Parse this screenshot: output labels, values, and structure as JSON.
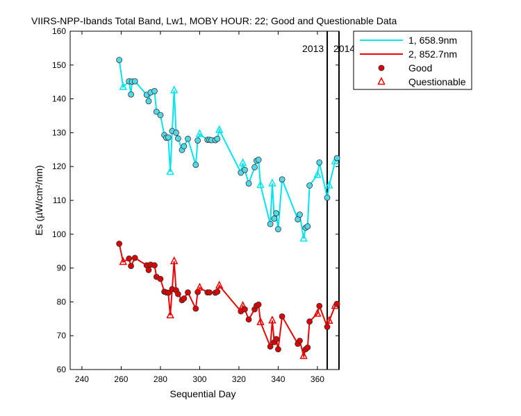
{
  "chart_data": {
    "type": "line",
    "title": "VIIRS-NPP-Ibands Total Band,  Lw1, MOBY HOUR: 22;  Good and Questionable Data",
    "xlabel": "Sequential Day",
    "ylabel": "Es (µW/cm²/nm)",
    "xlim": [
      234,
      371
    ],
    "ylim": [
      60,
      160
    ],
    "xticks": [
      240,
      260,
      280,
      300,
      320,
      340,
      360
    ],
    "yticks": [
      60,
      70,
      80,
      90,
      100,
      110,
      120,
      130,
      140,
      150,
      160
    ],
    "grid": false,
    "legend_position": "outside-top-right",
    "year_markers": [
      {
        "x": 365,
        "left_label": "2013",
        "right_label": "2014"
      },
      {
        "x": 371,
        "left_label": "",
        "right_label": ""
      }
    ],
    "series": [
      {
        "name": "1, 658.9nm",
        "color": "#00e5ee",
        "marker_fill": "#52d8e8",
        "points": [
          {
            "x": 259,
            "y": 151.5,
            "q": false
          },
          {
            "x": 261,
            "y": 143.5,
            "q": true
          },
          {
            "x": 264,
            "y": 145.2,
            "q": false
          },
          {
            "x": 265,
            "y": 141.3,
            "q": false
          },
          {
            "x": 265.5,
            "y": 145.1,
            "q": false
          },
          {
            "x": 267,
            "y": 145.2,
            "q": false
          },
          {
            "x": 273,
            "y": 141.2,
            "q": false
          },
          {
            "x": 274,
            "y": 139.3,
            "q": false
          },
          {
            "x": 275,
            "y": 141.9,
            "q": false
          },
          {
            "x": 277,
            "y": 142.3,
            "q": false
          },
          {
            "x": 278,
            "y": 136.2,
            "q": false
          },
          {
            "x": 280,
            "y": 135.2,
            "q": false
          },
          {
            "x": 282,
            "y": 129.3,
            "q": false
          },
          {
            "x": 283,
            "y": 128.5,
            "q": false
          },
          {
            "x": 284,
            "y": 128.6,
            "q": false
          },
          {
            "x": 285,
            "y": 118.4,
            "q": true
          },
          {
            "x": 286,
            "y": 130.5,
            "q": false
          },
          {
            "x": 287,
            "y": 142.5,
            "q": true
          },
          {
            "x": 288,
            "y": 130.0,
            "q": false
          },
          {
            "x": 289,
            "y": 128.3,
            "q": false
          },
          {
            "x": 291,
            "y": 124.9,
            "q": false
          },
          {
            "x": 292,
            "y": 126.0,
            "q": false
          },
          {
            "x": 294,
            "y": 128.2,
            "q": false
          },
          {
            "x": 298,
            "y": 120.5,
            "q": false
          },
          {
            "x": 299,
            "y": 127.7,
            "q": false
          },
          {
            "x": 300,
            "y": 129.6,
            "q": true
          },
          {
            "x": 304,
            "y": 127.9,
            "q": false
          },
          {
            "x": 305,
            "y": 127.9,
            "q": false
          },
          {
            "x": 306,
            "y": 127.8,
            "q": false
          },
          {
            "x": 308,
            "y": 127.8,
            "q": false
          },
          {
            "x": 309,
            "y": 128.2,
            "q": false
          },
          {
            "x": 310,
            "y": 130.8,
            "q": true
          },
          {
            "x": 321,
            "y": 118.2,
            "q": false
          },
          {
            "x": 322,
            "y": 121.0,
            "q": true
          },
          {
            "x": 323,
            "y": 119.0,
            "q": false
          },
          {
            "x": 325,
            "y": 115.0,
            "q": false
          },
          {
            "x": 328,
            "y": 119.8,
            "q": false
          },
          {
            "x": 329,
            "y": 121.7,
            "q": false
          },
          {
            "x": 330,
            "y": 122.0,
            "q": false
          },
          {
            "x": 331,
            "y": 114.5,
            "q": true
          },
          {
            "x": 336,
            "y": 103.0,
            "q": false
          },
          {
            "x": 337,
            "y": 115.0,
            "q": true
          },
          {
            "x": 338,
            "y": 104.6,
            "q": false
          },
          {
            "x": 339,
            "y": 106.2,
            "q": false
          },
          {
            "x": 340,
            "y": 101.5,
            "q": false
          },
          {
            "x": 342,
            "y": 116.2,
            "q": false
          },
          {
            "x": 350,
            "y": 104.4,
            "q": false
          },
          {
            "x": 351,
            "y": 105.8,
            "q": false
          },
          {
            "x": 353,
            "y": 98.7,
            "q": true
          },
          {
            "x": 354,
            "y": 101.9,
            "q": false
          },
          {
            "x": 355,
            "y": 102.3,
            "q": false
          },
          {
            "x": 356,
            "y": 114.4,
            "q": false
          },
          {
            "x": 360,
            "y": 117.5,
            "q": true
          },
          {
            "x": 361,
            "y": 121.2,
            "q": false
          },
          {
            "x": 365,
            "y": 110.8,
            "q": false
          },
          {
            "x": 366,
            "y": 114.4,
            "q": true
          },
          {
            "x": 369,
            "y": 121.5,
            "q": true
          },
          {
            "x": 370,
            "y": 122.5,
            "q": false
          }
        ]
      },
      {
        "name": "2, 852.7nm",
        "color": "#ee0000",
        "marker_fill": "#dd0000",
        "points": [
          {
            "x": 259,
            "y": 97.2,
            "q": false
          },
          {
            "x": 261,
            "y": 91.8,
            "q": true
          },
          {
            "x": 264,
            "y": 92.8,
            "q": false
          },
          {
            "x": 265,
            "y": 90.6,
            "q": false
          },
          {
            "x": 267,
            "y": 93.0,
            "q": false
          },
          {
            "x": 273,
            "y": 90.8,
            "q": false
          },
          {
            "x": 274,
            "y": 89.4,
            "q": false
          },
          {
            "x": 275,
            "y": 91.0,
            "q": false
          },
          {
            "x": 277,
            "y": 90.8,
            "q": false
          },
          {
            "x": 278,
            "y": 87.4,
            "q": false
          },
          {
            "x": 280,
            "y": 86.8,
            "q": false
          },
          {
            "x": 282,
            "y": 83.0,
            "q": false
          },
          {
            "x": 283,
            "y": 82.8,
            "q": false
          },
          {
            "x": 284,
            "y": 82.7,
            "q": false
          },
          {
            "x": 285,
            "y": 76.0,
            "q": true
          },
          {
            "x": 286,
            "y": 83.8,
            "q": false
          },
          {
            "x": 287,
            "y": 92.0,
            "q": true
          },
          {
            "x": 288,
            "y": 83.4,
            "q": false
          },
          {
            "x": 289,
            "y": 82.3,
            "q": false
          },
          {
            "x": 291,
            "y": 80.5,
            "q": false
          },
          {
            "x": 292,
            "y": 81.0,
            "q": false
          },
          {
            "x": 294,
            "y": 82.8,
            "q": false
          },
          {
            "x": 298,
            "y": 78.0,
            "q": false
          },
          {
            "x": 299,
            "y": 82.9,
            "q": false
          },
          {
            "x": 300,
            "y": 84.2,
            "q": true
          },
          {
            "x": 304,
            "y": 82.8,
            "q": false
          },
          {
            "x": 305,
            "y": 82.8,
            "q": false
          },
          {
            "x": 308,
            "y": 82.7,
            "q": false
          },
          {
            "x": 309,
            "y": 83.0,
            "q": false
          },
          {
            "x": 310,
            "y": 84.8,
            "q": true
          },
          {
            "x": 321,
            "y": 77.2,
            "q": false
          },
          {
            "x": 322,
            "y": 78.8,
            "q": true
          },
          {
            "x": 323,
            "y": 77.8,
            "q": false
          },
          {
            "x": 325,
            "y": 74.8,
            "q": false
          },
          {
            "x": 328,
            "y": 77.8,
            "q": false
          },
          {
            "x": 329,
            "y": 78.9,
            "q": false
          },
          {
            "x": 330,
            "y": 79.2,
            "q": false
          },
          {
            "x": 331,
            "y": 74.0,
            "q": true
          },
          {
            "x": 336,
            "y": 66.8,
            "q": false
          },
          {
            "x": 337,
            "y": 74.5,
            "q": true
          },
          {
            "x": 338,
            "y": 68.1,
            "q": false
          },
          {
            "x": 339,
            "y": 69.0,
            "q": false
          },
          {
            "x": 340,
            "y": 66.0,
            "q": false
          },
          {
            "x": 342,
            "y": 75.7,
            "q": false
          },
          {
            "x": 350,
            "y": 67.6,
            "q": false
          },
          {
            "x": 351,
            "y": 68.5,
            "q": false
          },
          {
            "x": 353,
            "y": 64.0,
            "q": true
          },
          {
            "x": 354,
            "y": 66.0,
            "q": false
          },
          {
            "x": 355,
            "y": 66.5,
            "q": false
          },
          {
            "x": 356,
            "y": 74.2,
            "q": false
          },
          {
            "x": 360,
            "y": 76.5,
            "q": true
          },
          {
            "x": 361,
            "y": 78.8,
            "q": false
          },
          {
            "x": 365,
            "y": 72.6,
            "q": false
          },
          {
            "x": 366,
            "y": 74.4,
            "q": true
          },
          {
            "x": 369,
            "y": 78.8,
            "q": true
          },
          {
            "x": 370,
            "y": 79.4,
            "q": false
          }
        ]
      }
    ],
    "legend": {
      "entries": [
        {
          "label": "1, 658.9nm",
          "kind": "line",
          "color": "#00e5ee"
        },
        {
          "label": "2, 852.7nm",
          "kind": "line",
          "color": "#ee0000"
        },
        {
          "label": "Good",
          "kind": "circle",
          "color": "#dd0000"
        },
        {
          "label": "Questionable",
          "kind": "triangle",
          "color": "#ee0000"
        }
      ]
    }
  }
}
